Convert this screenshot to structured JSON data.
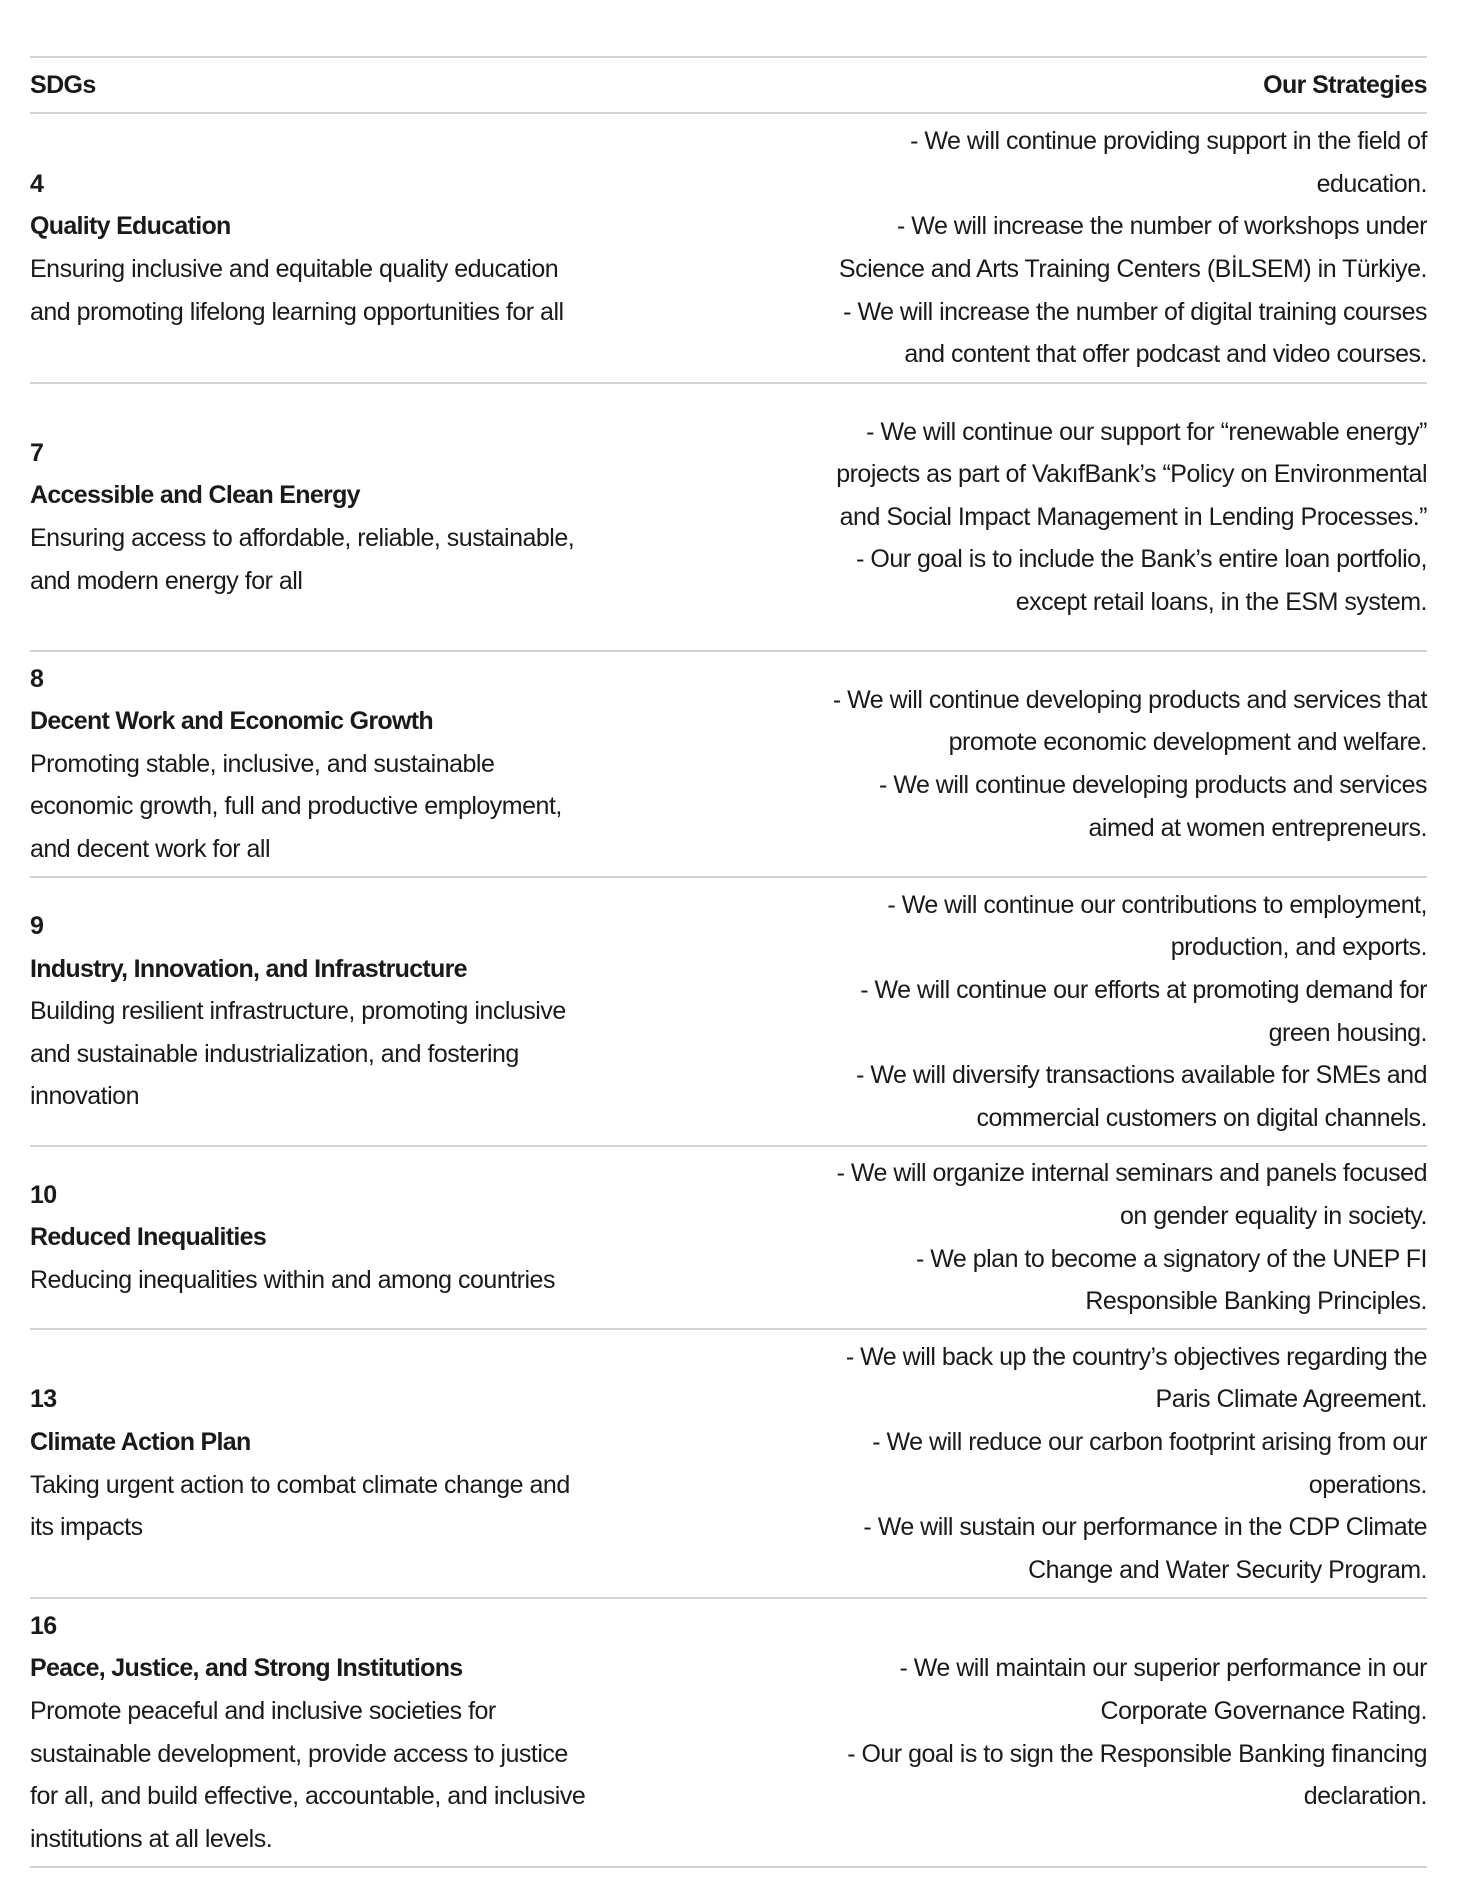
{
  "header": {
    "left": "SDGs",
    "right": "Our Strategies"
  },
  "rows": [
    {
      "number": "4",
      "title": "Quality Education",
      "desc": [
        "Ensuring inclusive and equitable quality education",
        "and promoting lifelong learning opportunities for all"
      ],
      "strategies": [
        "- We will continue providing support in the field of",
        "education.",
        "- We will increase the number of workshops under",
        "Science and Arts Training Centers (BİLSEM) in Türkiye.",
        "- We will increase the number of digital training courses",
        "and content that offer podcast and video courses."
      ]
    },
    {
      "number": "7",
      "title": "Accessible and Clean Energy",
      "desc": [
        "Ensuring access to affordable, reliable, sustainable,",
        "and modern energy for all"
      ],
      "strategies": [
        "- We will continue our support for “renewable energy”",
        "projects as part of VakıfBank’s “Policy on Environmental",
        "and Social Impact Management in Lending Processes.”",
        "- Our goal is to include the Bank’s entire loan portfolio,",
        "except retail loans, in the ESM system."
      ]
    },
    {
      "number": "8",
      "title": "Decent Work and Economic Growth",
      "desc": [
        "Promoting stable, inclusive, and sustainable",
        "economic growth, full and productive employment,",
        "and decent work for all"
      ],
      "strategies": [
        "- We will continue developing products and services that",
        "promote economic development and welfare.",
        "- We will continue developing products and services",
        "aimed at women entrepreneurs."
      ]
    },
    {
      "number": "9",
      "title": "Industry, Innovation, and Infrastructure",
      "desc": [
        "Building resilient infrastructure, promoting inclusive",
        "and sustainable industrialization, and fostering",
        "innovation"
      ],
      "strategies": [
        "- We will continue our contributions to employment,",
        "production, and exports.",
        "- We will continue our efforts at promoting demand for",
        "green housing.",
        "- We will diversify transactions available for SMEs and",
        "commercial customers on digital channels."
      ]
    },
    {
      "number": "10",
      "title": "Reduced Inequalities",
      "desc": [
        "Reducing inequalities within and among countries"
      ],
      "strategies": [
        "- We will organize internal seminars and panels focused",
        "on gender equality in society.",
        "- We plan to become a signatory of the UNEP FI",
        "Responsible Banking Principles."
      ]
    },
    {
      "number": "13",
      "title": "Climate Action Plan",
      "desc": [
        "Taking urgent action to combat climate change and",
        "its impacts"
      ],
      "strategies": [
        "- We will back up the country’s objectives regarding the",
        "Paris Climate Agreement.",
        "- We will reduce our carbon footprint arising from our",
        "operations.",
        "- We will sustain our performance in the CDP Climate",
        "Change and Water Security Program."
      ]
    },
    {
      "number": "16",
      "title": "Peace, Justice, and Strong Institutions",
      "desc": [
        "Promote peaceful and inclusive societies for",
        "sustainable development, provide access to justice",
        "for all, and build effective, accountable, and inclusive",
        "institutions at all levels."
      ],
      "strategies": [
        "- We will maintain our superior performance in our",
        "Corporate Governance Rating.",
        "- Our goal is to sign the Responsible Banking financing",
        "declaration."
      ]
    }
  ]
}
